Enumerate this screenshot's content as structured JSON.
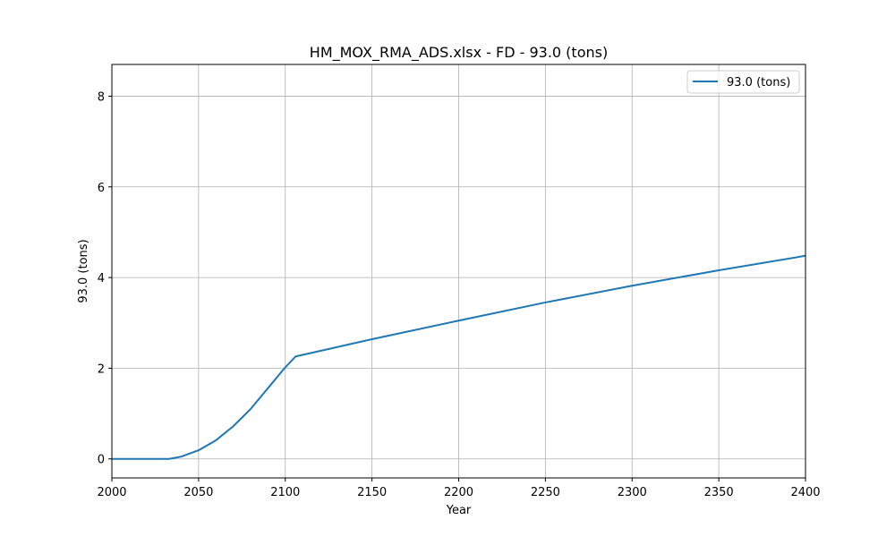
{
  "chart_data": {
    "type": "line",
    "title": "HM_MOX_RMA_ADS.xlsx - FD - 93.0 (tons)",
    "xlabel": "Year",
    "ylabel": "93.0 (tons)",
    "xlim": [
      2000,
      2400
    ],
    "ylim": [
      -0.42,
      8.7
    ],
    "xticks": [
      2000,
      2050,
      2100,
      2150,
      2200,
      2250,
      2300,
      2350,
      2400
    ],
    "yticks": [
      0,
      2,
      4,
      6,
      8
    ],
    "grid": true,
    "legend_position": "top-right",
    "series": [
      {
        "name": "93.0 (tons)",
        "color": "#1f77b4",
        "x": [
          2000,
          2010,
          2020,
          2033,
          2040,
          2050,
          2060,
          2070,
          2080,
          2090,
          2100,
          2106,
          2120,
          2150,
          2200,
          2250,
          2300,
          2350,
          2400
        ],
        "y": [
          0,
          0,
          0,
          0,
          0.05,
          0.19,
          0.41,
          0.72,
          1.1,
          1.56,
          2.02,
          2.26,
          2.38,
          2.64,
          3.05,
          3.45,
          3.82,
          4.16,
          4.48
        ]
      }
    ]
  }
}
